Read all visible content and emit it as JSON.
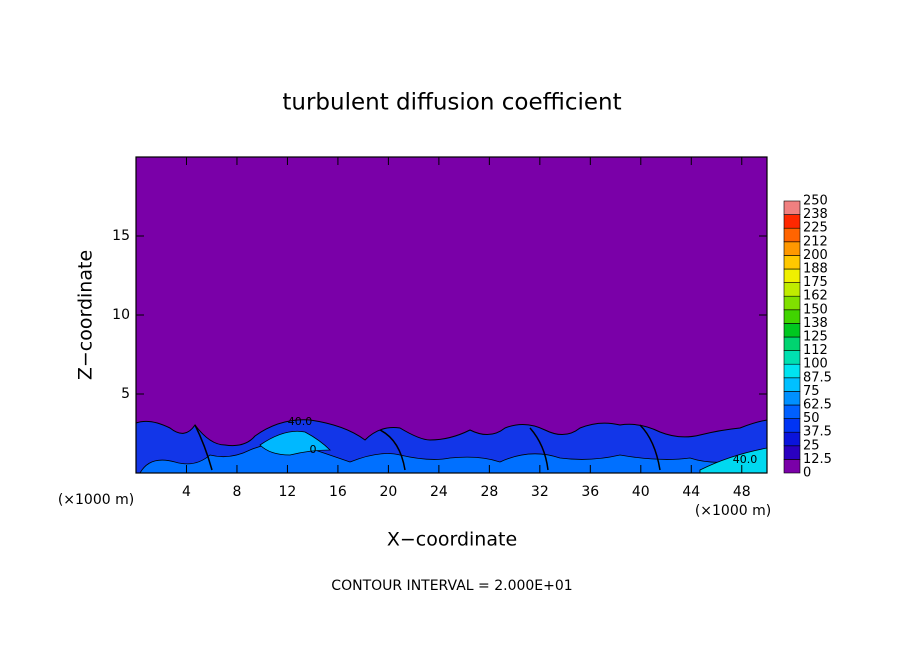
{
  "chart_data": {
    "type": "contour",
    "title": "turbulent diffusion coefficient",
    "xlabel": "X−coordinate",
    "ylabel": "Z−coordinate",
    "yunit": "(×1000 m)",
    "xunit": "(×1000 m)",
    "footer": "CONTOUR INTERVAL = 2.000E+01",
    "contour_labels": [
      "40.0",
      "0",
      "40.0"
    ],
    "xlim": [
      0,
      50
    ],
    "ylim": [
      0,
      20
    ],
    "xticks": [
      4,
      8,
      12,
      16,
      20,
      24,
      28,
      32,
      36,
      40,
      44,
      48
    ],
    "yticks": [
      5,
      10,
      15
    ],
    "levels": [
      0,
      12.5,
      25,
      37.5,
      50,
      62.5,
      75,
      87.5,
      100,
      112,
      125,
      138,
      150,
      162,
      175,
      188,
      200,
      212,
      225,
      238,
      250
    ],
    "level_colors": [
      "#7a00a8",
      "#2a00c0",
      "#0a14dc",
      "#0034f4",
      "#0060ff",
      "#0090ff",
      "#00c0ff",
      "#00e4f0",
      "#00e0b0",
      "#00d470",
      "#00c820",
      "#40d400",
      "#80e000",
      "#c0ec00",
      "#f0f000",
      "#ffc800",
      "#ff9800",
      "#ff6400",
      "#ff2800",
      "#f08080"
    ]
  }
}
